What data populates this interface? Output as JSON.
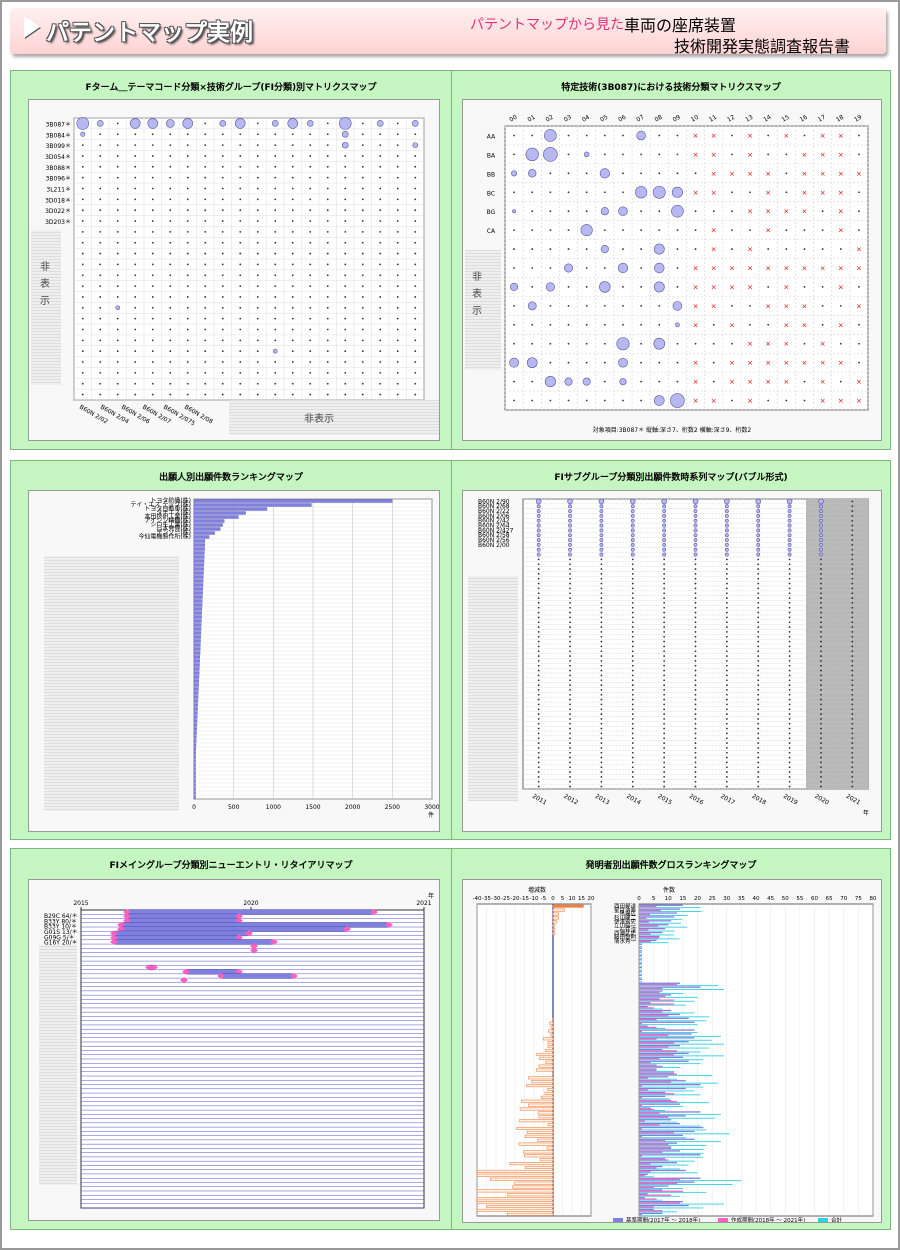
{
  "header": {
    "title": "パテントマップ実例",
    "subtitle": "パテントマップから見た",
    "subject": "車両の座席装置",
    "report": "技術開発実態調査報告書"
  },
  "panels": {
    "p1": {
      "title": "Fターム＿テーマコード分類×技術グループ(FI分類)別マトリクスマップ",
      "row_labels": [
        "3B087＊",
        "3B084＊",
        "3B099＊",
        "3D054＊",
        "3B088＊",
        "3B096＊",
        "3L211＊",
        "3D018＊",
        "3D022＊",
        "3D203＊"
      ],
      "col_labels": [
        "B60N 2/02",
        "B60N 2/04",
        "B60N 2/06",
        "B60N 2/07",
        "B60N 2/075",
        "B60N 2/08"
      ],
      "hidden_v": "非表示",
      "hidden_h": "非表示"
    },
    "p2": {
      "title": "特定技術(3B087)における技術分類マトリクスマップ",
      "col_labels": [
        "00",
        "01",
        "02",
        "03",
        "04",
        "05",
        "06",
        "07",
        "08",
        "09",
        "10",
        "11",
        "12",
        "13",
        "14",
        "15",
        "16",
        "17",
        "18",
        "19"
      ],
      "row_labels": [
        "AA",
        "BA",
        "BB",
        "BC",
        "BG",
        "CA"
      ],
      "hidden_v": "非表示",
      "footnote": "対象項目:3B087＊  縦軸:深さ7、桁数2  横軸:深さ9、桁数2"
    },
    "p3": {
      "title": "出願人別出願件数ランキングマップ",
      "applicants": [
        "トヨタ紡織(株)",
        "テイ・エス テック(株)",
        "トヨタ自動車(株)",
        "タチエス(株)",
        "本田技研工業(株)",
        "アイシン精機(株)",
        "シロキ工業(株)",
        "日本発條(株)",
        "デンソー(株)",
        "今仙電機製作所(株)"
      ],
      "axis_ticks": [
        "0",
        "500",
        "1000",
        "1500",
        "2000",
        "2500",
        "3000"
      ],
      "unit": "件"
    },
    "p4": {
      "title": "FIサブグループ分類別出願件数時系列マップ(バブル形式)",
      "row_labels": [
        "B60N 2/90",
        "B60N 2/68",
        "B60N 2/22",
        "B60N 2/06",
        "B60N 2/42",
        "B60N 2/64",
        "B60N 2/427",
        "B60N 2/58",
        "B60N 2/56",
        "B60N 2/00"
      ],
      "years": [
        "2011",
        "2012",
        "2013",
        "2014",
        "2015",
        "2016",
        "2017",
        "2018",
        "2019",
        "2020",
        "2021"
      ],
      "unit": "年"
    },
    "p5": {
      "title": "FIメイングループ分類別ニューエントリ・リタイアリマップ",
      "years": [
        "2015",
        "2020",
        "2021"
      ],
      "unit": "年",
      "row_labels": [
        "B29C 64/＊",
        "B33Y 80/＊",
        "B33Y 10/＊",
        "G01S 13/＊",
        "G09G 5/＊",
        "G16Y 20/＊"
      ]
    },
    "p6": {
      "title": "発明者別出願件数グロスランキングマップ",
      "left_axis_title": "増減数",
      "left_ticks": [
        "-40",
        "-35",
        "-30",
        "-25",
        "-20",
        "-15",
        "-10",
        "-5",
        "0",
        "5",
        "10",
        "15",
        "20"
      ],
      "right_axis_title": "件数",
      "right_ticks": [
        "0",
        "5",
        "10",
        "15",
        "20",
        "25",
        "30",
        "35",
        "40",
        "45",
        "50",
        "55",
        "60",
        "65",
        "70",
        "75",
        "80"
      ],
      "inventors": [
        "西田晃洋",
        "星月浩寿",
        "馬場広",
        "杉山隆二",
        "伊澤雪史",
        "立川陽一",
        "石井淳",
        "西浦武史",
        "藤田悦則",
        "清水秀一"
      ],
      "legend": [
        "基準期間(2017年 ～ 2018年)",
        "作成期間(2018年 ～ 2021年)",
        "合計"
      ]
    }
  },
  "colors": {
    "panel_bg": "#c5f5c0",
    "bubble": "#b8b8f0",
    "bar_blue": "#8080e0",
    "bar_pink": "#ff60c0",
    "bar_cyan": "#30d0e0",
    "bar_orange": "#f08040",
    "cross": "#e00000"
  }
}
